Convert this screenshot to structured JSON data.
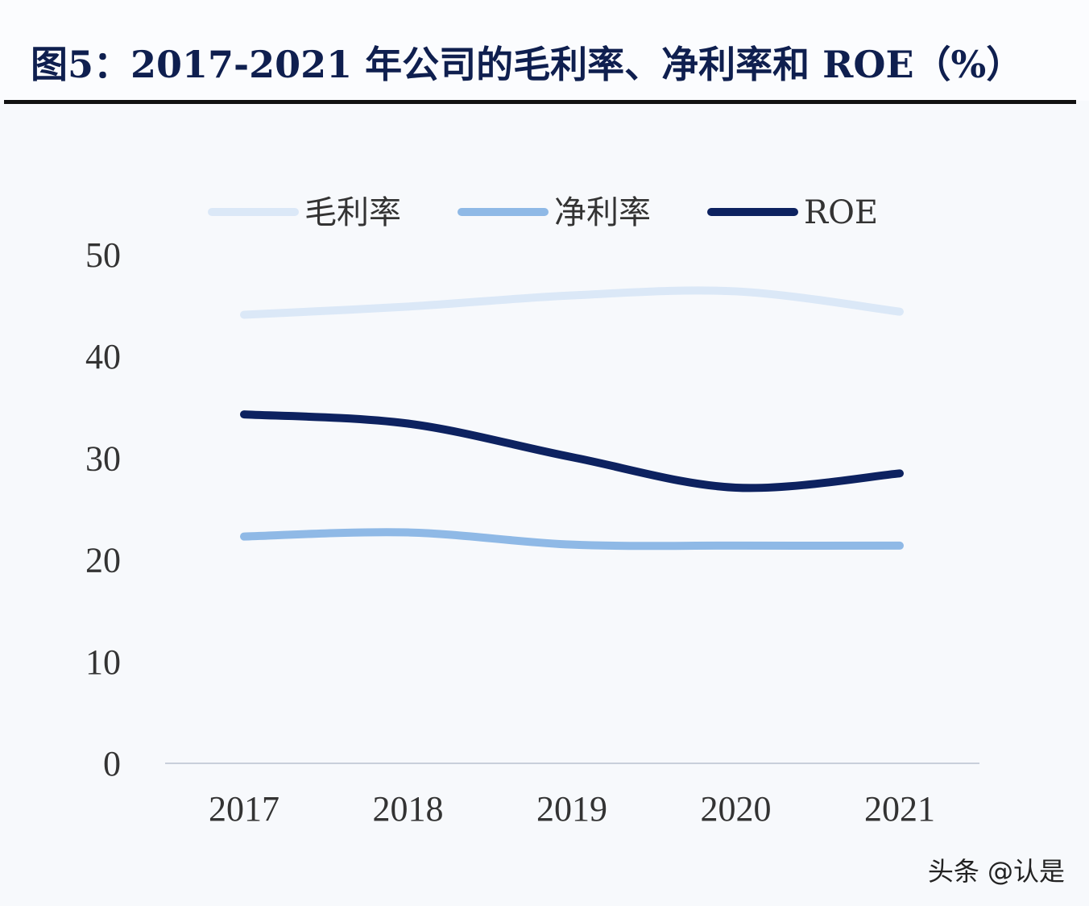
{
  "chart_data": {
    "type": "line",
    "title": "图5：2017-2021 年公司的毛利率、净利率和 ROE（%）",
    "categories": [
      "2017",
      "2018",
      "2019",
      "2020",
      "2021"
    ],
    "ylim": [
      0,
      50
    ],
    "yticks": [
      "0",
      "10",
      "20",
      "30",
      "40",
      "50"
    ],
    "grid": false,
    "legend": "top",
    "smooth": true,
    "series": [
      {
        "name": "毛利率",
        "color": "#dbe8f7",
        "values": [
          44.1,
          44.9,
          46.0,
          46.4,
          44.4
        ]
      },
      {
        "name": "净利率",
        "color": "#8fb9e6",
        "values": [
          22.3,
          22.7,
          21.5,
          21.4,
          21.4
        ]
      },
      {
        "name": "ROE",
        "color": "#0d2260",
        "values": [
          34.3,
          33.4,
          30.1,
          27.1,
          28.5
        ]
      }
    ]
  },
  "watermark": "头条 @认是"
}
